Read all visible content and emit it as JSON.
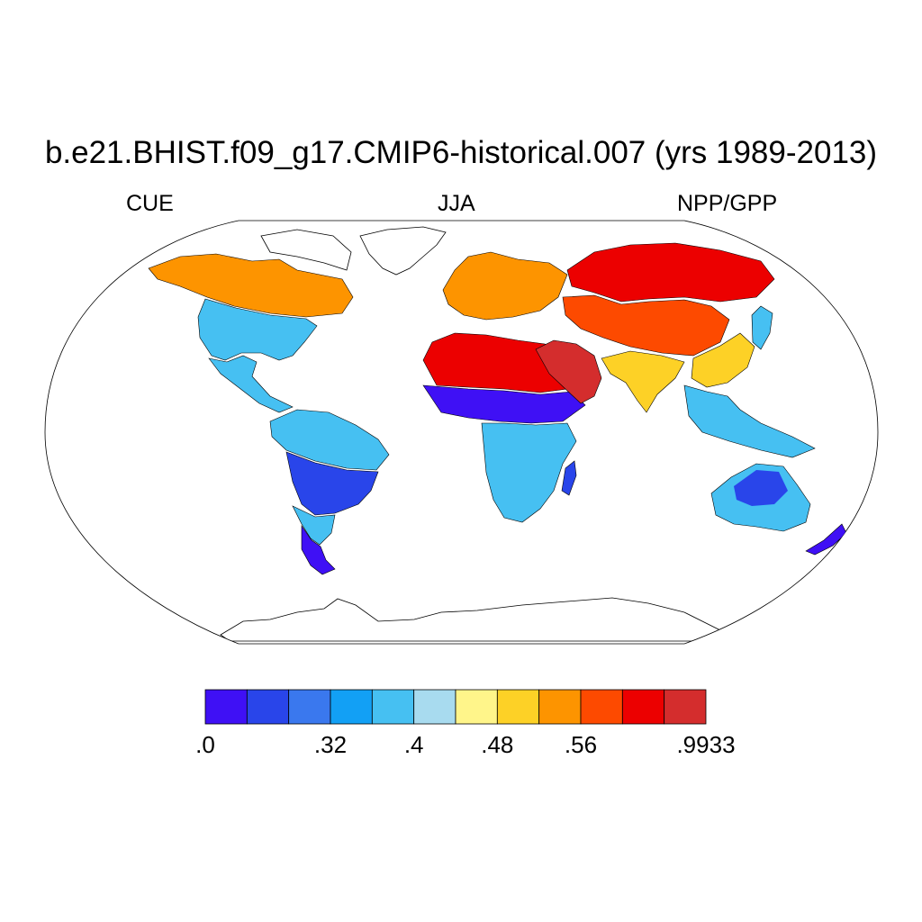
{
  "title": "b.e21.BHIST.f09_g17.CMIP6-historical.007 (yrs 1989-2013)",
  "subtitle_left": "CUE",
  "subtitle_center": "JJA",
  "subtitle_right": "NPP/GPP",
  "projection": "Robinson",
  "colorbar": {
    "colors": [
      "#3f10f5",
      "#2945ea",
      "#3a78ee",
      "#12a0f5",
      "#46c0f2",
      "#a8dbef",
      "#fff58a",
      "#fdd126",
      "#fd9400",
      "#fd4a00",
      "#ec0000",
      "#d42d2d"
    ],
    "labels": [
      ".0",
      ".32",
      ".4",
      ".48",
      ".56",
      ".9933"
    ],
    "label_at_boundary": [
      0,
      3,
      5,
      7,
      9,
      12
    ]
  },
  "regions": [
    {
      "name": "north-america-arctic",
      "color": "#fd9400"
    },
    {
      "name": "north-america-temperate",
      "color": "#46c0f2"
    },
    {
      "name": "central-america",
      "color": "#46c0f2"
    },
    {
      "name": "amazon",
      "color": "#2945ea"
    },
    {
      "name": "patagonia",
      "color": "#3f10f5"
    },
    {
      "name": "europe",
      "color": "#fd9400"
    },
    {
      "name": "sahara",
      "color": "#ec0000"
    },
    {
      "name": "sahel",
      "color": "#3f10f5"
    },
    {
      "name": "southern-africa",
      "color": "#46c0f2"
    },
    {
      "name": "middle-east",
      "color": "#d42d2d"
    },
    {
      "name": "siberia",
      "color": "#ec0000"
    },
    {
      "name": "central-asia",
      "color": "#fd4a00"
    },
    {
      "name": "south-asia",
      "color": "#fdd126"
    },
    {
      "name": "southeast-asia",
      "color": "#46c0f2"
    },
    {
      "name": "australia",
      "color": "#46c0f2"
    },
    {
      "name": "australia-interior",
      "color": "#2945ea"
    },
    {
      "name": "new-zealand",
      "color": "#3f10f5"
    }
  ]
}
